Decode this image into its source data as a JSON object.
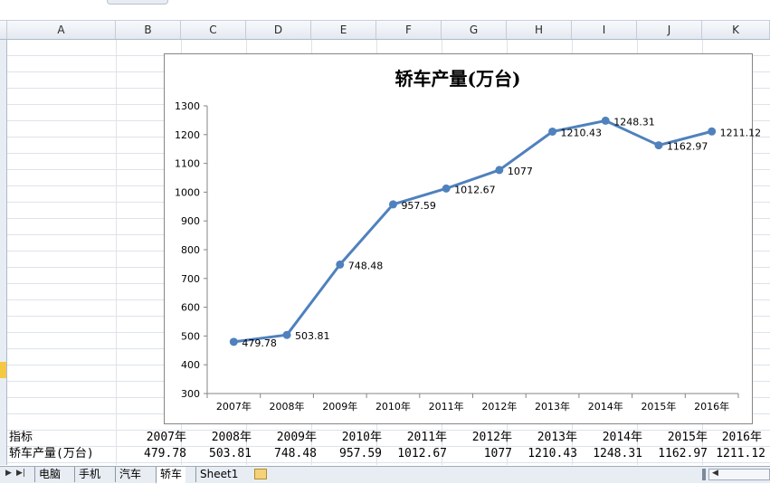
{
  "columns": [
    "A",
    "B",
    "C",
    "D",
    "E",
    "F",
    "G",
    "H",
    "I",
    "J",
    "K"
  ],
  "table": {
    "header_label": "指标",
    "row_label": "轿车产量(万台)",
    "years": [
      "2007年",
      "2008年",
      "2009年",
      "2010年",
      "2011年",
      "2012年",
      "2013年",
      "2014年",
      "2015年",
      "2016年"
    ],
    "values": [
      "479.78",
      "503.81",
      "748.48",
      "957.59",
      "1012.67",
      "1077",
      "1210.43",
      "1248.31",
      "1162.97",
      "1211.12"
    ]
  },
  "sheet_tabs": [
    "电脑",
    "手机",
    "汽车",
    "轿车",
    "Sheet1"
  ],
  "active_sheet": "轿车",
  "colors": {
    "series": "#4f81bd",
    "grid_line": "#dde3ea",
    "header_bg": "#e4e9f0",
    "selected_row": "#f5c842"
  },
  "chart_data": {
    "type": "line",
    "title": "轿车产量(万台)",
    "categories": [
      "2007年",
      "2008年",
      "2009年",
      "2010年",
      "2011年",
      "2012年",
      "2013年",
      "2014年",
      "2015年",
      "2016年"
    ],
    "series": [
      {
        "values": [
          479.78,
          503.81,
          748.48,
          957.59,
          1012.67,
          1077,
          1210.43,
          1248.31,
          1162.97,
          1211.12
        ],
        "labels": [
          "479.78",
          "503.81",
          "748.48",
          "957.59",
          "1012.67",
          "1077",
          "1210.43",
          "1248.31",
          "1162.97",
          "1211.12"
        ],
        "color": "#4f81bd",
        "markers": true
      }
    ],
    "yticks": [
      "300",
      "400",
      "500",
      "600",
      "700",
      "800",
      "900",
      "1000",
      "1100",
      "1200",
      "1300"
    ],
    "ylim": [
      300,
      1300
    ],
    "grid": false,
    "legend": "none"
  }
}
